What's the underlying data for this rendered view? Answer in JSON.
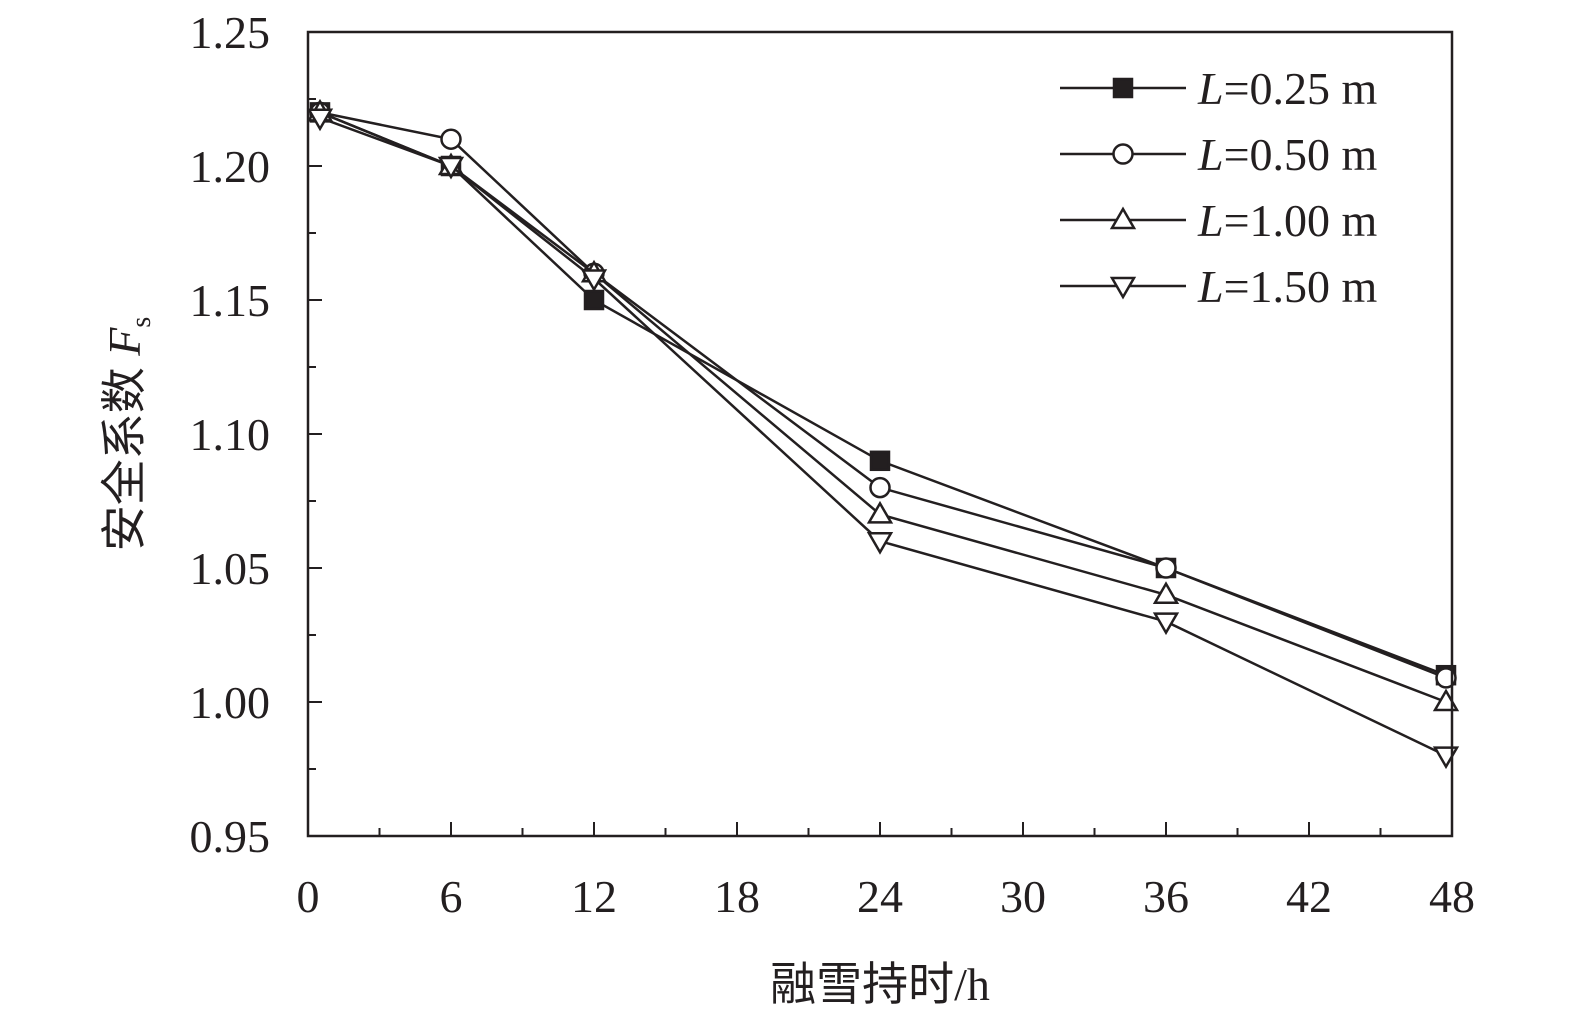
{
  "chart_data": {
    "type": "line",
    "xlabel": "融雪持时/h",
    "ylabel_main": "安全系数 ",
    "ylabel_symbol": "F",
    "ylabel_subscript": "s",
    "xlim": [
      0,
      48
    ],
    "ylim": [
      0.95,
      1.25
    ],
    "x_ticks": [
      "0",
      "6",
      "12",
      "18",
      "24",
      "30",
      "36",
      "42",
      "48"
    ],
    "y_ticks": [
      "0.95",
      "1.00",
      "1.05",
      "1.10",
      "1.15",
      "1.20",
      "1.25"
    ],
    "grid": false,
    "legend_position": "top-right",
    "x": [
      0,
      6,
      12,
      24,
      36,
      48
    ],
    "series": [
      {
        "name": "L=0.25 m",
        "name_symbol": "L",
        "name_value": "=0.25 m",
        "marker": "filled-square",
        "values": [
          1.22,
          1.2,
          1.15,
          1.09,
          1.05,
          1.01
        ]
      },
      {
        "name": "L=0.50 m",
        "name_symbol": "L",
        "name_value": "=0.50 m",
        "marker": "open-circle",
        "values": [
          1.22,
          1.21,
          1.16,
          1.08,
          1.05,
          1.009
        ]
      },
      {
        "name": "L=1.00 m",
        "name_symbol": "L",
        "name_value": "=1.00 m",
        "marker": "open-triangle-up",
        "values": [
          1.22,
          1.2,
          1.16,
          1.07,
          1.04,
          1.0
        ]
      },
      {
        "name": "L=1.50 m",
        "name_symbol": "L",
        "name_value": "=1.50 m",
        "marker": "open-triangle-down",
        "values": [
          1.218,
          1.2,
          1.158,
          1.06,
          1.03,
          0.98
        ]
      }
    ],
    "colors": {
      "line": "#231f20",
      "background": "#ffffff"
    }
  }
}
